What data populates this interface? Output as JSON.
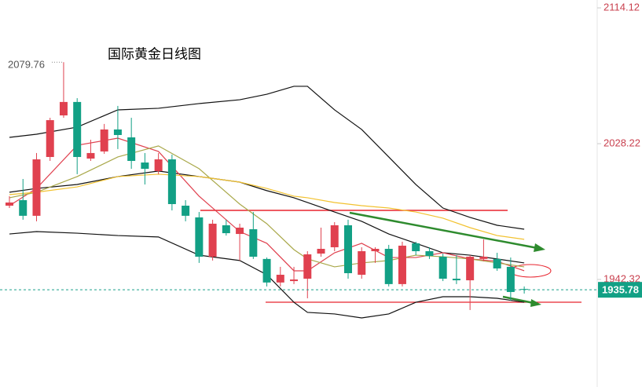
{
  "chart_data": {
    "type": "candlestick",
    "title": "国际黄金日线图",
    "ylim": [
      1874.3,
      2119.1
    ],
    "yticks": [
      2114.12,
      2028.22,
      1942.32
    ],
    "up_color": "#e0414f",
    "down_color": "#12a085",
    "open": [
      1989.0,
      1992.5,
      1982.6,
      2019.8,
      2046.1,
      2054.6,
      2018.8,
      2023.3,
      2037.2,
      2032.2,
      2016.3,
      2010.9,
      2018.3,
      1989.0,
      1981.6,
      1956.7,
      1976.6,
      1971.1,
      1974.1,
      1955.3,
      1940.4,
      1941.3,
      1942.8,
      1958.7,
      1962.7,
      1976.6,
      1945.3,
      1960.2,
      1961.7,
      1939.4,
      1965.2,
      1960.2,
      1956.7,
      1942.8,
      1941.8,
      1955.3,
      1955.3,
      1950.3,
      1936.3
    ],
    "high": [
      1995.0,
      2005.9,
      2022.3,
      2044.6,
      2079.76,
      2057.0,
      2030.7,
      2040.7,
      2052.1,
      2044.6,
      2022.3,
      2022.3,
      2021.3,
      1992.5,
      1985.0,
      1980.1,
      1980.1,
      1977.6,
      1985.0,
      1956.2,
      1950.3,
      1950.3,
      1960.2,
      1975.1,
      1978.6,
      1980.1,
      1962.7,
      1962.7,
      1964.2,
      1966.2,
      1966.2,
      1962.7,
      1958.7,
      1957.7,
      1957.7,
      1967.7,
      1959.2,
      1956.2,
      1937.9
    ],
    "low": [
      1987.5,
      1980.1,
      1979.1,
      2017.3,
      2044.6,
      2008.9,
      2017.3,
      2021.8,
      2024.8,
      2012.3,
      2002.4,
      2008.9,
      1986.0,
      1979.1,
      1952.8,
      1954.3,
      1970.1,
      1954.3,
      1955.3,
      1937.9,
      1937.9,
      1939.4,
      1930.4,
      1956.7,
      1960.2,
      1942.8,
      1942.8,
      1952.8,
      1937.9,
      1937.9,
      1957.7,
      1955.3,
      1941.3,
      1939.4,
      1923.0,
      1953.8,
      1947.8,
      1928.9,
      1933.4
    ],
    "close": [
      1991.0,
      1982.6,
      2018.3,
      2043.1,
      2054.6,
      2019.8,
      2022.3,
      2037.2,
      2033.7,
      2017.3,
      2012.3,
      2018.3,
      1990.0,
      1982.6,
      1956.7,
      1977.6,
      1971.6,
      1975.1,
      1956.7,
      1940.4,
      1945.3,
      1942.3,
      1958.2,
      1961.7,
      1976.6,
      1946.3,
      1960.2,
      1961.7,
      1939.4,
      1963.7,
      1960.2,
      1957.2,
      1942.8,
      1941.8,
      1956.7,
      1956.7,
      1949.3,
      1934.4,
      1935.78
    ],
    "overlay_x": [
      0,
      2,
      5,
      8,
      11,
      14,
      17,
      19,
      21,
      22,
      24,
      26,
      28,
      30,
      32,
      34,
      36,
      38
    ],
    "overlays": [
      {
        "color": "#111111",
        "values": [
          2032.2,
          2034.2,
          2038.7,
          2049.6,
          2050.6,
          2053.6,
          2056.0,
          2059.5,
          2064.5,
          2064.5,
          2049.6,
          2037.2,
          2019.8,
          2002.4,
          1987.5,
          1981.6,
          1976.6,
          1974.1
        ]
      },
      {
        "color": "#111111",
        "values": [
          1997.5,
          1999.9,
          2002.4,
          2007.4,
          2010.9,
          2007.4,
          2003.9,
          1998.5,
          1994.0,
          1991.0,
          1985.0,
          1979.1,
          1971.1,
          1965.2,
          1959.2,
          1957.7,
          1955.3,
          1952.8
        ]
      },
      {
        "color": "#111111",
        "values": [
          1971.1,
          1972.6,
          1971.6,
          1970.1,
          1969.2,
          1957.7,
          1954.3,
          1945.3,
          1927.9,
          1921.5,
          1920.5,
          1918.0,
          1920.5,
          1927.9,
          1931.4,
          1931.4,
          1930.4,
          1927.9
        ]
      },
      {
        "color": "#e0414f",
        "values": [
          1989.0,
          1999.9,
          2027.2,
          2031.7,
          2023.3,
          1995.0,
          1972.6,
          1965.2,
          1947.8,
          1947.8,
          1959.2,
          1965.2,
          1956.2,
          1956.2,
          1959.2,
          1955.3,
          1953.8,
          1947.8
        ]
      },
      {
        "color": "#a9a84a",
        "values": [
          1994.0,
          1997.5,
          2007.4,
          2019.8,
          2026.8,
          2012.4,
          1990.0,
          1977.6,
          1961.2,
          1955.3,
          1950.3,
          1952.8,
          1954.3,
          1957.7,
          1956.7,
          1955.3,
          1952.8,
          1950.3
        ]
      },
      {
        "color": "#f2c230",
        "values": [
          1996.0,
          1997.5,
          2000.9,
          2007.4,
          2008.9,
          2007.4,
          2003.9,
          1999.9,
          1995.0,
          1994.0,
          1991.0,
          1989.0,
          1987.5,
          1985.0,
          1981.1,
          1975.1,
          1970.1,
          1967.7
        ]
      }
    ]
  }
}
